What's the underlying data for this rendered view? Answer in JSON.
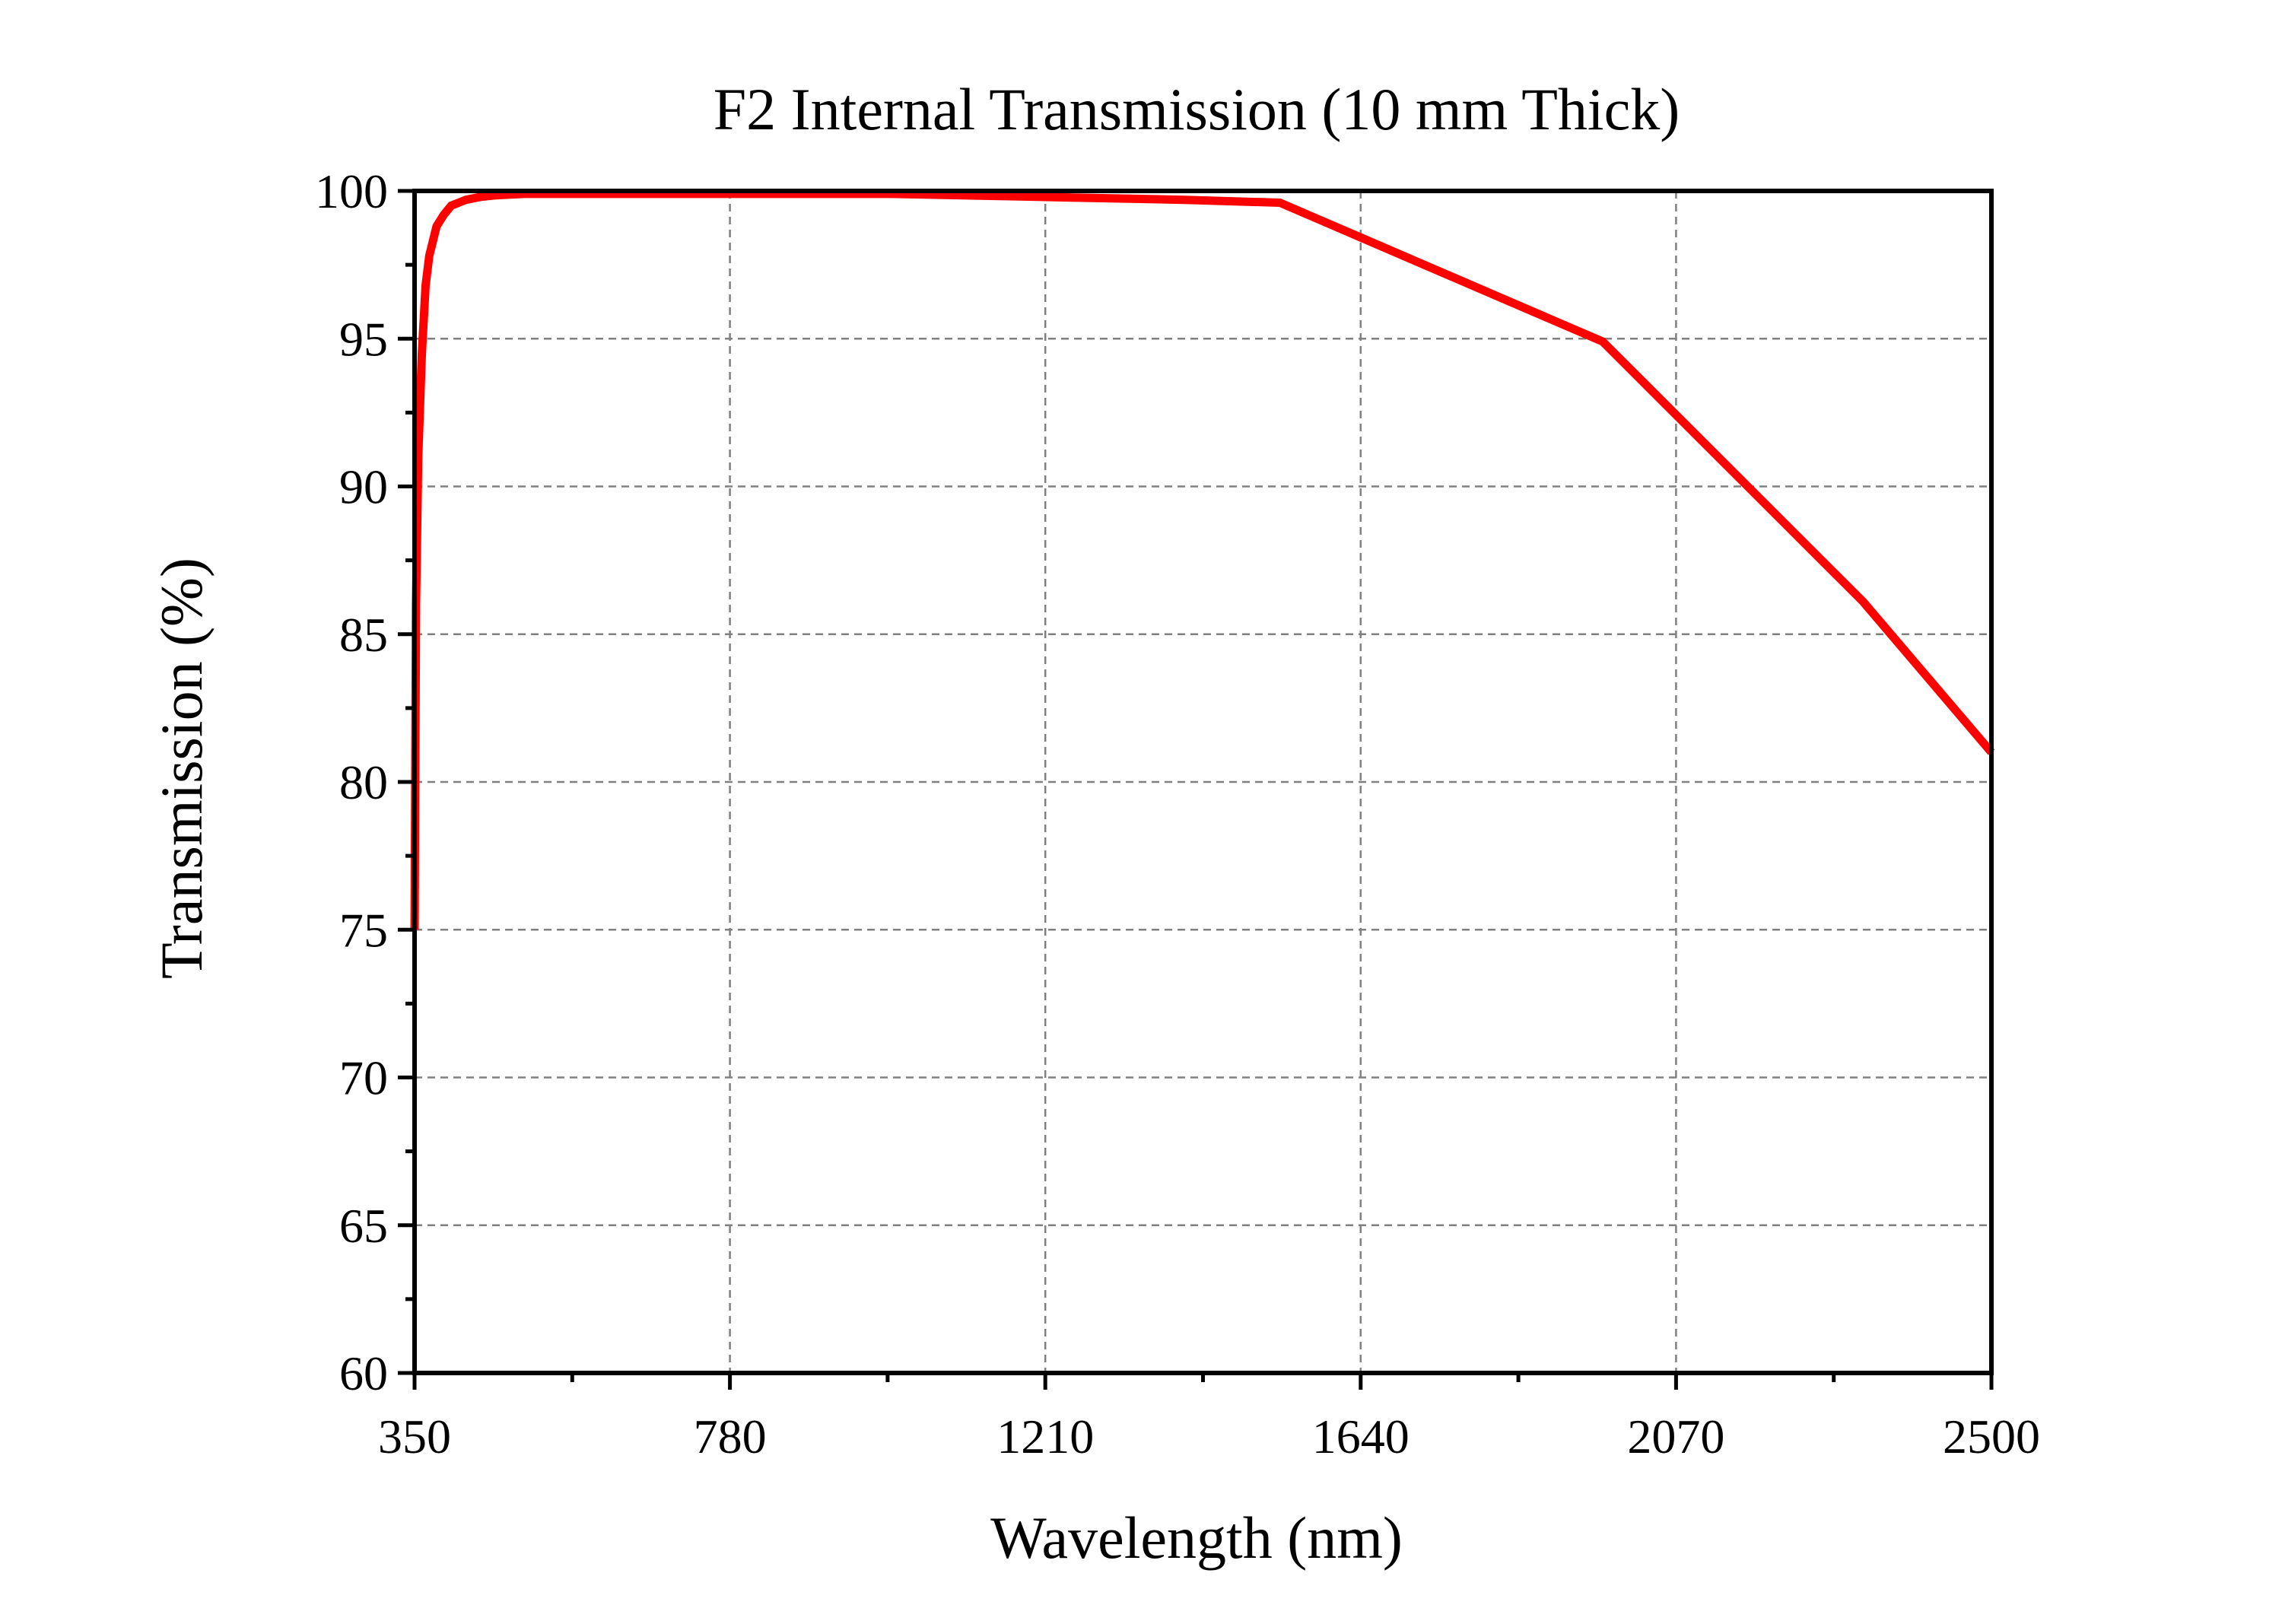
{
  "chart_data": {
    "type": "line",
    "title": "F2 Internal Transmission (10 mm Thick)",
    "xlabel": "Wavelength (nm)",
    "ylabel": "Transmission (%)",
    "xlim": [
      350,
      2500
    ],
    "ylim": [
      60,
      100
    ],
    "xticks": [
      350,
      780,
      1210,
      1640,
      2070,
      2500
    ],
    "yticks": [
      60,
      65,
      70,
      75,
      80,
      85,
      90,
      95,
      100
    ],
    "grid": true,
    "line_color": "#ff0000",
    "series": [
      {
        "x": [
          350,
          352,
          355,
          360,
          365,
          370,
          375,
          380,
          390,
          400,
          420,
          440,
          460,
          500,
          550,
          600,
          700,
          800,
          1000,
          1200,
          1400,
          1530,
          1970,
          2325,
          2500
        ],
        "y": [
          75.0,
          86.0,
          91.0,
          94.5,
          96.8,
          97.8,
          98.3,
          98.8,
          99.2,
          99.5,
          99.7,
          99.8,
          99.85,
          99.9,
          99.9,
          99.9,
          99.9,
          99.9,
          99.9,
          99.8,
          99.7,
          99.6,
          94.9,
          86.1,
          81.0
        ]
      }
    ]
  }
}
